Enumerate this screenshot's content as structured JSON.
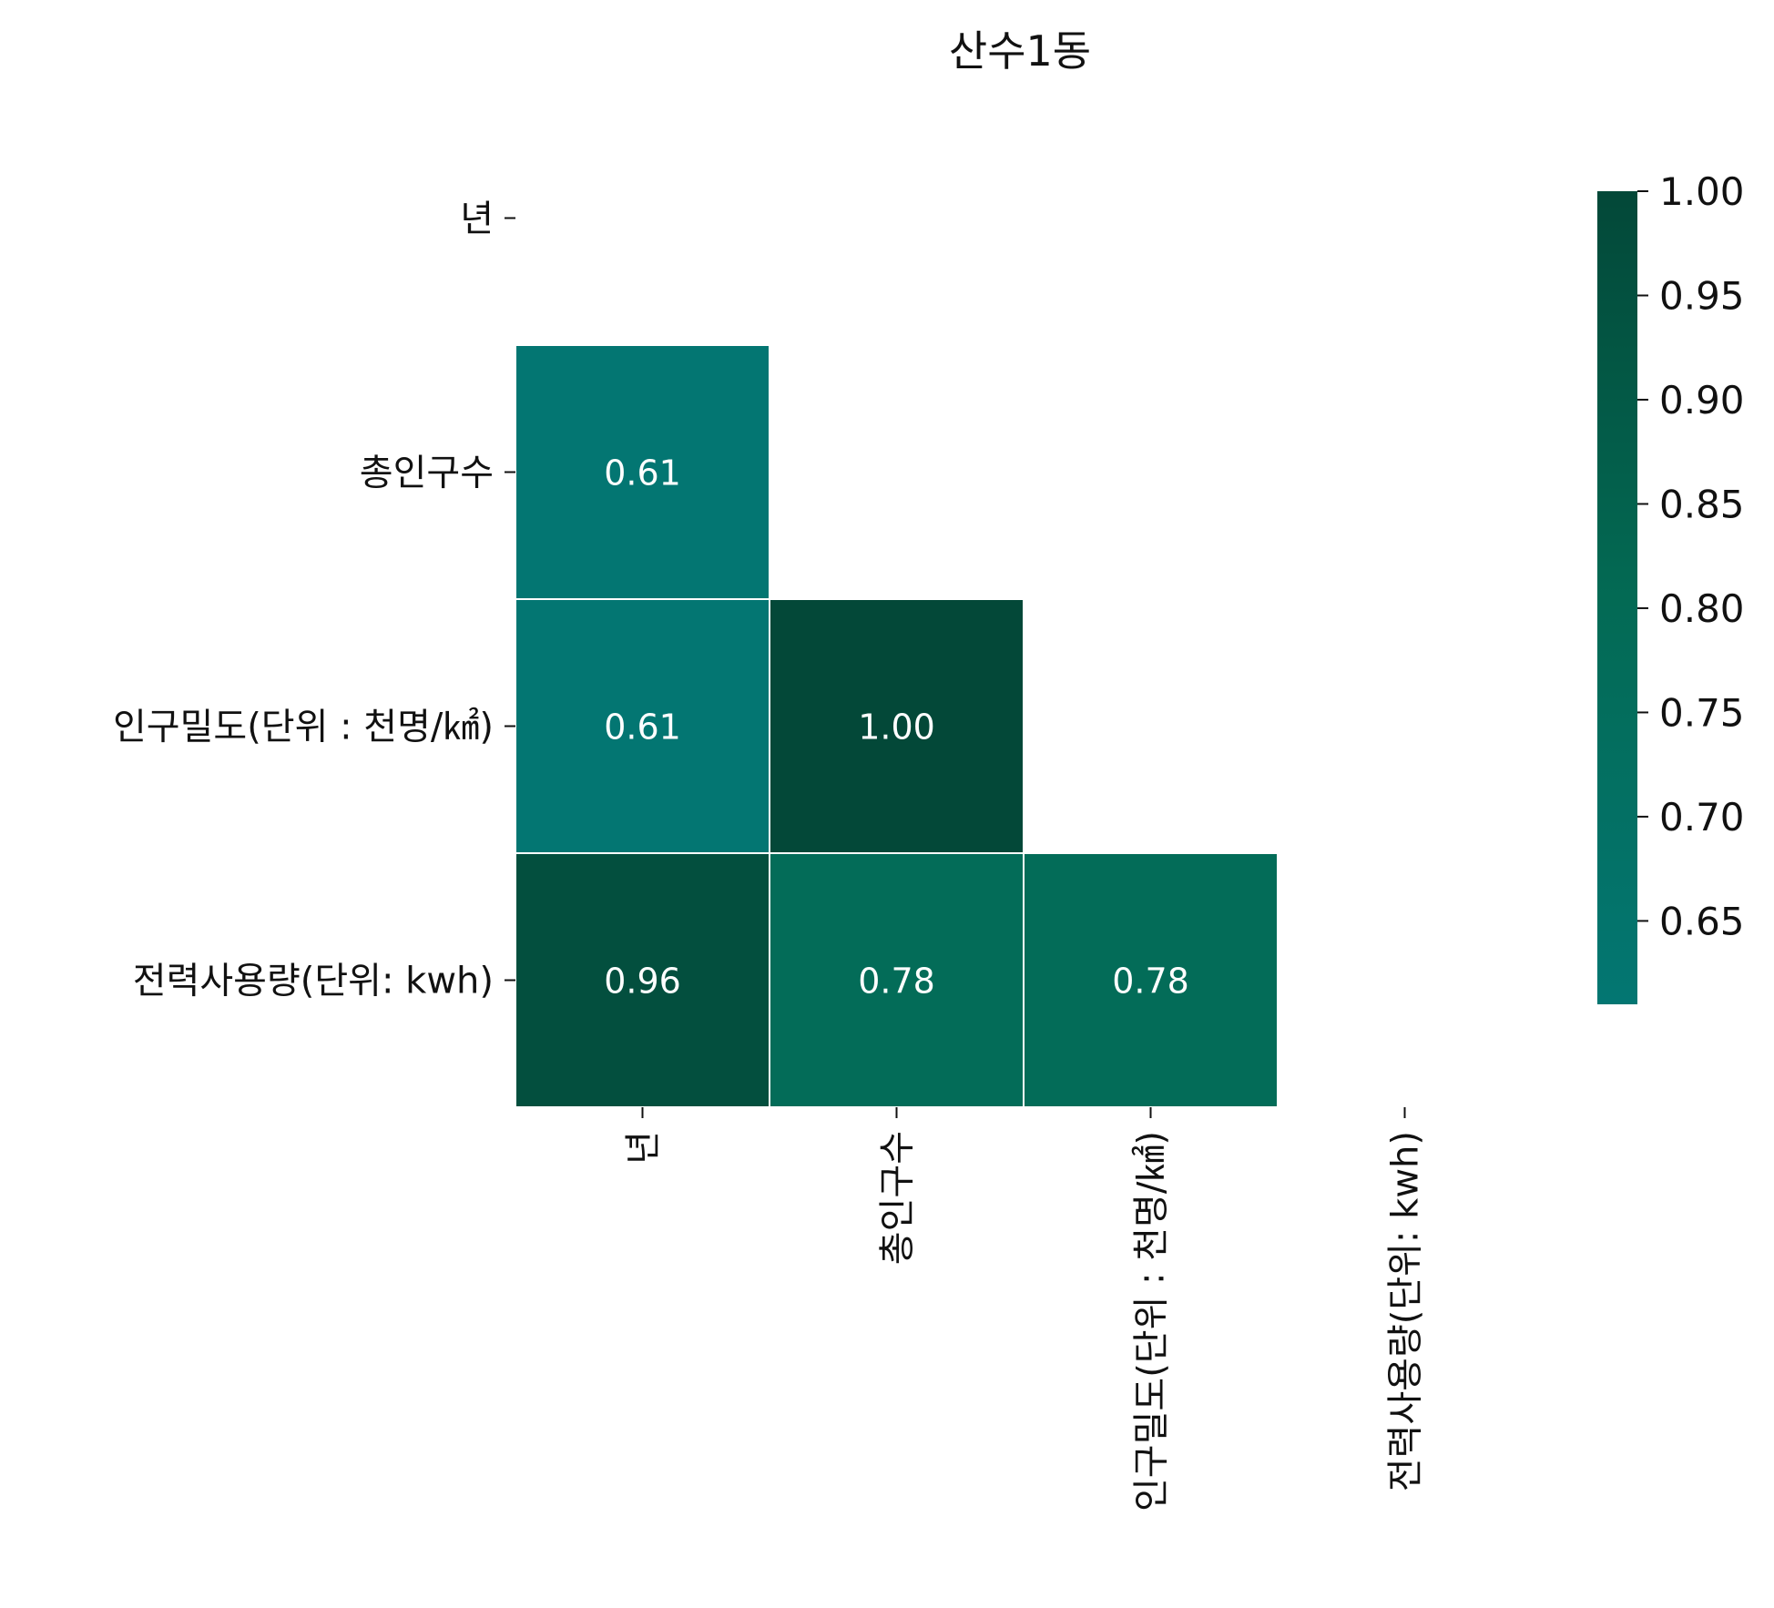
{
  "chart_data": {
    "type": "heatmap",
    "title": "산수1동",
    "xlabel": "",
    "ylabel": "",
    "row_labels": [
      "년",
      "총인구수",
      "인구밀도(단위 : 천명/㎢)",
      "전력사용량(단위: kwh)"
    ],
    "col_labels": [
      "년",
      "총인구수",
      "인구밀도(단위 : 천명/㎢)",
      "전력사용량(단위: kwh)"
    ],
    "mask": "upper-triangle-including-diagonal",
    "cells": [
      {
        "row": 1,
        "col": 0,
        "value": 0.61,
        "label": "0.61"
      },
      {
        "row": 2,
        "col": 0,
        "value": 0.61,
        "label": "0.61"
      },
      {
        "row": 2,
        "col": 1,
        "value": 1.0,
        "label": "1.00"
      },
      {
        "row": 3,
        "col": 0,
        "value": 0.96,
        "label": "0.96"
      },
      {
        "row": 3,
        "col": 1,
        "value": 0.78,
        "label": "0.78"
      },
      {
        "row": 3,
        "col": 2,
        "value": 0.78,
        "label": "0.78"
      }
    ],
    "colorbar": {
      "min": 0.61,
      "max": 1.0,
      "ticks": [
        0.65,
        0.7,
        0.75,
        0.8,
        0.85,
        0.9,
        0.95,
        1.0
      ],
      "tick_labels": [
        "0.65",
        "0.70",
        "0.75",
        "0.80",
        "0.85",
        "0.90",
        "0.95",
        "1.00"
      ],
      "color_low": "#037672",
      "color_high": "#034838"
    },
    "grid": false,
    "cell_border_color": "#ffffff"
  }
}
